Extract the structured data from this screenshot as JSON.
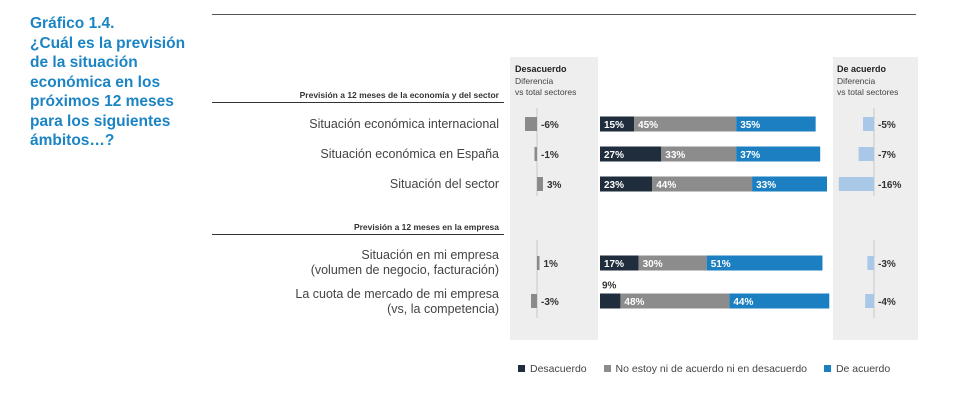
{
  "title": {
    "lines": [
      "Gráfico 1.4.",
      "¿Cuál es la previsión",
      "de la situación",
      "económica en los",
      "próximos 12 meses",
      "para los siguientes",
      "ámbitos…?"
    ]
  },
  "column_headers": {
    "left": {
      "title": "Desacuerdo",
      "line1": "Diferencia",
      "line2": "vs total sectores"
    },
    "right": {
      "title": "De acuerdo",
      "line1": "Diferencia",
      "line2": "vs total sectores"
    }
  },
  "colors": {
    "desacuerdo": "#1f2d3d",
    "neutral": "#8c8c8c",
    "acuerdo": "#1b7fc1",
    "diff_left": "#8a8a8a",
    "diff_right": "#a9c7e6",
    "column_bg": "#eeeeee",
    "title": "#1b84c4"
  },
  "chart_data": {
    "type": "bar",
    "orientation": "horizontal",
    "stacked": true,
    "sections": [
      {
        "title": "Previsión a 12 meses de la economía y del sector",
        "rows": [
          0,
          1,
          2
        ]
      },
      {
        "title": "Previsión a 12 meses en la empresa",
        "rows": [
          3,
          4
        ]
      }
    ],
    "rows": [
      {
        "label": [
          "Situación económica internacional"
        ],
        "desacuerdo": 15,
        "neutral": 45,
        "acuerdo": 35,
        "diff_desacuerdo": -6,
        "diff_acuerdo": -5,
        "labels": {
          "desacuerdo": "15%",
          "neutral": "45%",
          "acuerdo": "35%",
          "diff_desacuerdo": "-6%",
          "diff_acuerdo": "-5%"
        }
      },
      {
        "label": [
          "Situación económica en España"
        ],
        "desacuerdo": 27,
        "neutral": 33,
        "acuerdo": 37,
        "diff_desacuerdo": -1,
        "diff_acuerdo": -7,
        "labels": {
          "desacuerdo": "27%",
          "neutral": "33%",
          "acuerdo": "37%",
          "diff_desacuerdo": "-1%",
          "diff_acuerdo": "-7%"
        }
      },
      {
        "label": [
          "Situación del sector"
        ],
        "desacuerdo": 23,
        "neutral": 44,
        "acuerdo": 33,
        "diff_desacuerdo": 3,
        "diff_acuerdo": -16,
        "labels": {
          "desacuerdo": "23%",
          "neutral": "44%",
          "acuerdo": "33%",
          "diff_desacuerdo": "3%",
          "diff_acuerdo": "-16%"
        }
      },
      {
        "label": [
          "Situación en mi empresa",
          "(volumen de negocio, facturación)"
        ],
        "desacuerdo": 17,
        "neutral": 30,
        "acuerdo": 51,
        "diff_desacuerdo": 1,
        "diff_acuerdo": -3,
        "labels": {
          "desacuerdo": "17%",
          "neutral": "30%",
          "acuerdo": "51%",
          "diff_desacuerdo": "1%",
          "diff_acuerdo": "-3%"
        }
      },
      {
        "label": [
          "La cuota de mercado de mi empresa",
          "(vs, la competencia)"
        ],
        "desacuerdo": 9,
        "neutral": 48,
        "acuerdo": 44,
        "diff_desacuerdo": -3,
        "diff_acuerdo": -4,
        "labels": {
          "desacuerdo": "9%",
          "neutral": "48%",
          "acuerdo": "44%",
          "diff_desacuerdo": "-3%",
          "diff_acuerdo": "-4%"
        }
      }
    ],
    "legend": [
      "Desacuerdo",
      "No estoy ni de acuerdo ni en desacuerdo",
      "De acuerdo"
    ],
    "legend_position": "bottom"
  }
}
